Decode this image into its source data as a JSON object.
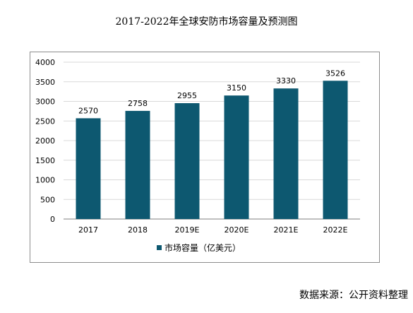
{
  "title": "2017-2022年全球安防市场容量及预测图",
  "source_note": "数据来源：公开资料整理",
  "colors": {
    "bar": "#0d5870",
    "grid": "#d9d9d9",
    "axis": "#7f7f7f",
    "text": "#000000"
  },
  "chart_data": {
    "type": "bar",
    "categories": [
      "2017",
      "2018",
      "2019E",
      "2020E",
      "2021E",
      "2022E"
    ],
    "series": [
      {
        "name": "市场容量（亿美元）",
        "values": [
          2570,
          2758,
          2955,
          3150,
          3330,
          3526
        ]
      }
    ],
    "data_labels": [
      "2570",
      "2758",
      "2955",
      "3150",
      "3330",
      "3526"
    ],
    "ylim": [
      0,
      4000
    ],
    "yticks": [
      "0",
      "500",
      "1000",
      "1500",
      "2000",
      "2500",
      "3000",
      "3500",
      "4000"
    ],
    "xlabel": "",
    "ylabel": "",
    "grid": true,
    "legend_position": "bottom"
  }
}
